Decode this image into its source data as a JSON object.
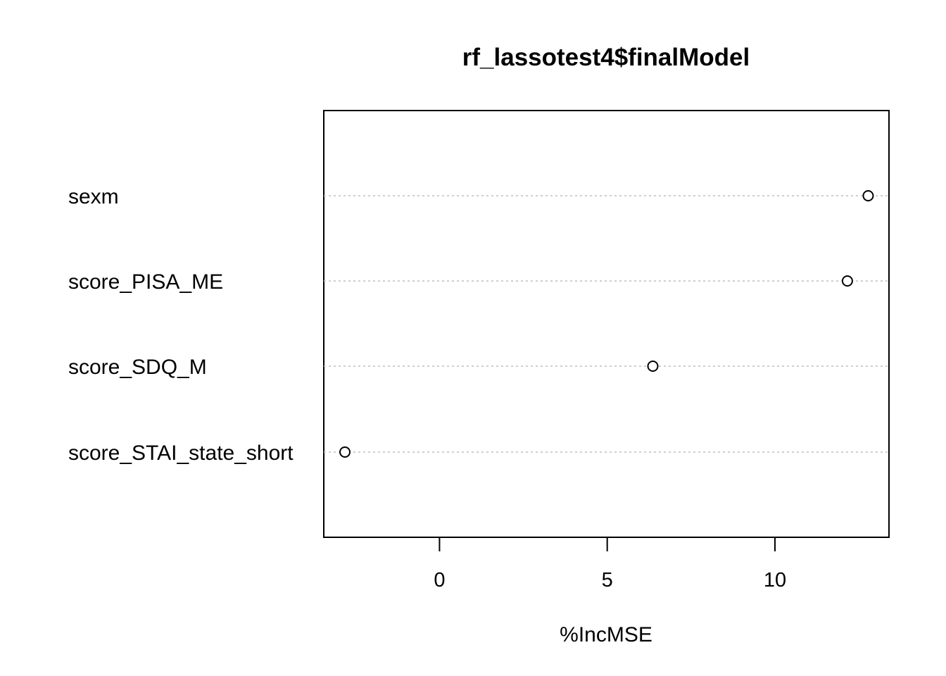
{
  "chart_data": {
    "type": "scatter",
    "title": "rf_lassotest4$finalModel",
    "xlabel": "%IncMSE",
    "ylabel": "",
    "xlim": [
      -3.45,
      13.4
    ],
    "xticks": [
      0,
      5,
      10
    ],
    "xtick_labels": [
      "0",
      "5",
      "10"
    ],
    "categories": [
      "sexm",
      "score_PISA_ME",
      "score_SDQ_M",
      "score_STAI_state_short"
    ],
    "values": [
      12.78,
      12.16,
      6.36,
      -2.82
    ],
    "grid": "dotted horizontal guide lines per variable",
    "marker": "open-circle"
  }
}
